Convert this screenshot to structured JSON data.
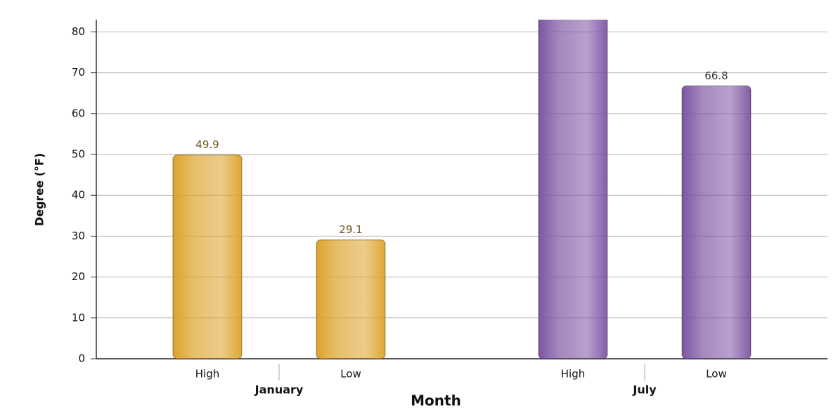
{
  "chart_data": {
    "type": "grouped-bar",
    "y_label": "Degree (°F)",
    "x_label": "Month",
    "groups": [
      {
        "name": "January",
        "color": "#dca32a",
        "categories": [
          "High",
          "Low"
        ],
        "values": [
          49.9,
          29.1
        ]
      },
      {
        "name": "July",
        "color": "#7d55a3",
        "categories": [
          "High",
          "Low"
        ],
        "values": [
          85,
          66.8
        ]
      }
    ],
    "ylim": [
      0,
      83
    ],
    "yticks": [
      0,
      10,
      20,
      30,
      40,
      50,
      60,
      70,
      80
    ],
    "grid": true
  }
}
